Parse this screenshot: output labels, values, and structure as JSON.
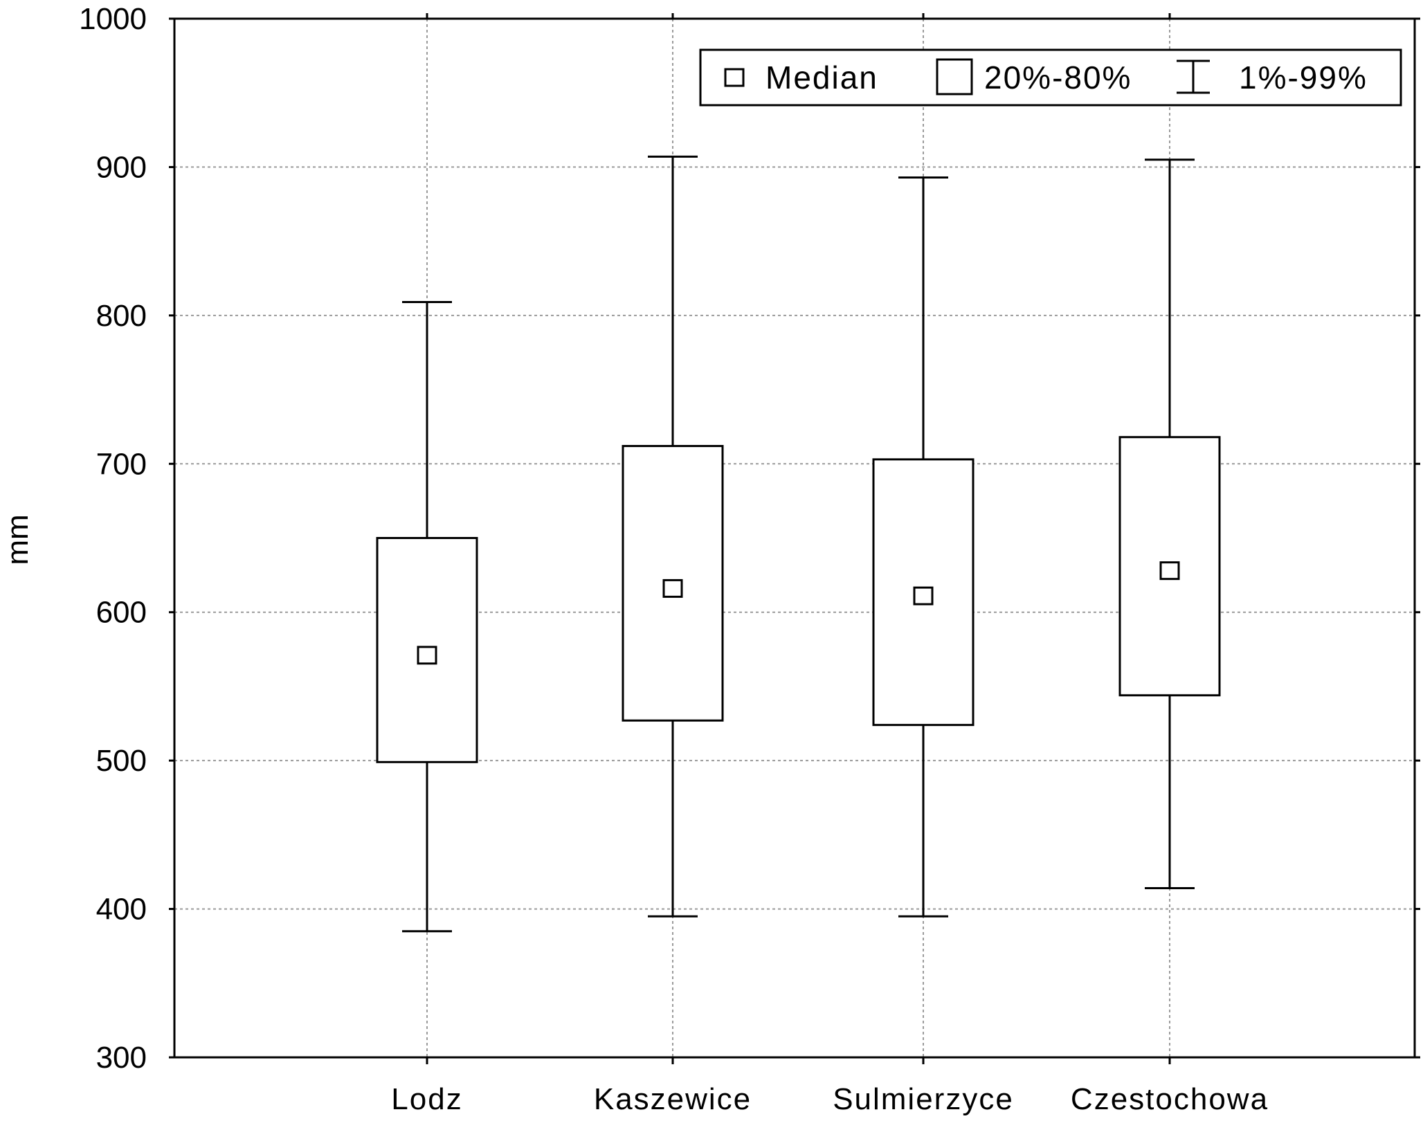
{
  "chart_data": {
    "type": "box",
    "ylabel": "mm",
    "xlabel": "",
    "ylim": [
      300,
      1000
    ],
    "yticks": [
      300,
      400,
      500,
      600,
      700,
      800,
      900,
      1000
    ],
    "grid": true,
    "legend_position": "top-right",
    "legend": {
      "median": "Median",
      "box": "20%-80%",
      "whisker": "1%-99%"
    },
    "categories": [
      "Lodz",
      "Kaszewice",
      "Sulmierzyce",
      "Czestochowa"
    ],
    "series": [
      {
        "category": "Lodz",
        "p1": 385,
        "p20": 499,
        "median": 571,
        "p80": 650,
        "p99": 809
      },
      {
        "category": "Kaszewice",
        "p1": 395,
        "p20": 527,
        "median": 616,
        "p80": 712,
        "p99": 907
      },
      {
        "category": "Sulmierzyce",
        "p1": 395,
        "p20": 524,
        "median": 611,
        "p80": 703,
        "p99": 893
      },
      {
        "category": "Czestochowa",
        "p1": 414,
        "p20": 544,
        "median": 628,
        "p80": 718,
        "p99": 905
      }
    ]
  }
}
